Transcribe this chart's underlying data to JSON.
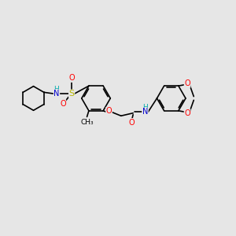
{
  "bg_color": "#e6e6e6",
  "bond_color": "#000000",
  "atom_colors": {
    "O": "#ff0000",
    "N": "#0000cd",
    "S": "#b8b800",
    "H": "#00aaaa",
    "C": "#000000"
  },
  "bond_width": 1.2,
  "font_size": 7.5,
  "fig_w": 3.0,
  "fig_h": 3.0,
  "dpi": 100
}
